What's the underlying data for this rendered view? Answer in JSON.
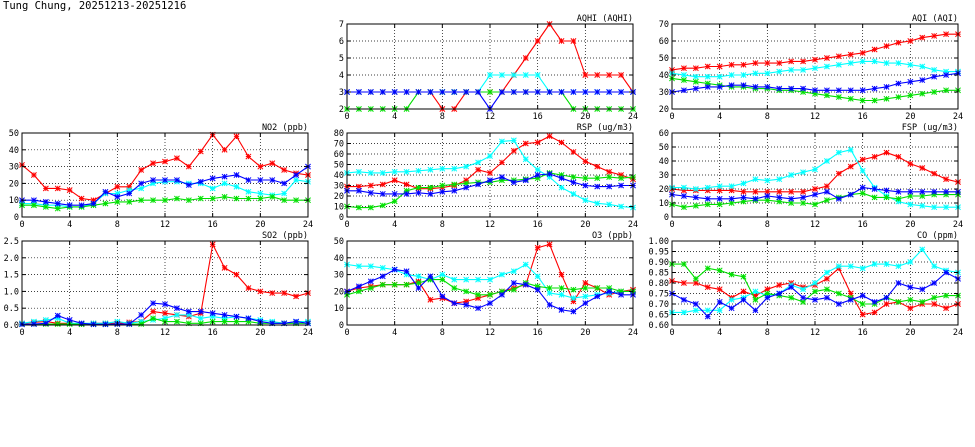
{
  "page": {
    "title": "Tung Chung, 20251213-20251216"
  },
  "chart_data": [
    {
      "id": "aqhi",
      "type": "line",
      "title": "AQHI (AQHI)",
      "xlabel": "",
      "ylabel": "",
      "xlim": [
        0,
        24
      ],
      "ylim": [
        2,
        7
      ],
      "xticks": [
        0,
        4,
        8,
        12,
        16,
        20,
        24
      ],
      "yticks": [
        2,
        3,
        4,
        5,
        6,
        7
      ],
      "grid": true,
      "series": [
        {
          "color": "#ff0000",
          "values": [
            3,
            3,
            3,
            3,
            3,
            3,
            3,
            3,
            2,
            2,
            3,
            3,
            3,
            3,
            4,
            5,
            6,
            7,
            6,
            6,
            4,
            4,
            4,
            4,
            3
          ]
        },
        {
          "color": "#00ffff",
          "values": [
            3,
            3,
            3,
            3,
            3,
            3,
            3,
            3,
            3,
            3,
            3,
            3,
            4,
            4,
            4,
            4,
            4,
            3,
            3,
            3,
            3,
            3,
            3,
            3,
            3
          ]
        },
        {
          "color": "#00e000",
          "values": [
            2,
            2,
            2,
            2,
            2,
            2,
            3,
            3,
            3,
            3,
            3,
            3,
            3,
            3,
            3,
            3,
            3,
            3,
            3,
            2,
            2,
            2,
            2,
            2,
            2
          ]
        },
        {
          "color": "#0000ff",
          "values": [
            3,
            3,
            3,
            3,
            3,
            3,
            3,
            3,
            3,
            3,
            3,
            3,
            2,
            3,
            3,
            3,
            3,
            3,
            3,
            3,
            3,
            3,
            3,
            3,
            3
          ]
        }
      ]
    },
    {
      "id": "aqi",
      "type": "line",
      "title": "AQI (AQI)",
      "xlabel": "",
      "ylabel": "",
      "xlim": [
        0,
        24
      ],
      "ylim": [
        20,
        70
      ],
      "xticks": [
        0,
        4,
        8,
        12,
        16,
        20,
        24
      ],
      "yticks": [
        20,
        30,
        40,
        50,
        60,
        70
      ],
      "grid": true,
      "series": [
        {
          "color": "#ff0000",
          "values": [
            43,
            44,
            44,
            45,
            45,
            46,
            46,
            47,
            47,
            47,
            48,
            48,
            49,
            50,
            51,
            52,
            53,
            55,
            57,
            59,
            60,
            62,
            63,
            64,
            64
          ]
        },
        {
          "color": "#00ffff",
          "values": [
            41,
            40,
            39,
            39,
            39,
            40,
            40,
            41,
            41,
            42,
            43,
            43,
            44,
            45,
            46,
            47,
            48,
            48,
            47,
            47,
            46,
            45,
            43,
            42,
            42
          ]
        },
        {
          "color": "#00e000",
          "values": [
            38,
            37,
            36,
            35,
            34,
            33,
            33,
            32,
            32,
            31,
            31,
            30,
            29,
            28,
            27,
            26,
            25,
            25,
            26,
            27,
            28,
            29,
            30,
            31,
            31
          ]
        },
        {
          "color": "#0000ff",
          "values": [
            30,
            31,
            32,
            33,
            33,
            34,
            34,
            33,
            33,
            32,
            32,
            32,
            31,
            31,
            31,
            31,
            31,
            32,
            33,
            35,
            36,
            37,
            39,
            40,
            41
          ]
        }
      ]
    },
    {
      "id": "no2",
      "type": "line",
      "title": "NO2 (ppb)",
      "xlabel": "",
      "ylabel": "",
      "xlim": [
        0,
        24
      ],
      "ylim": [
        0,
        50
      ],
      "xticks": [
        0,
        4,
        8,
        12,
        16,
        20,
        24
      ],
      "yticks": [
        0,
        10,
        20,
        30,
        40,
        50
      ],
      "grid": true,
      "series": [
        {
          "color": "#ff0000",
          "values": [
            31,
            25,
            17,
            17,
            16,
            11,
            10,
            14,
            18,
            18,
            28,
            32,
            33,
            35,
            30,
            39,
            49,
            40,
            48,
            36,
            30,
            32,
            28,
            26,
            25
          ]
        },
        {
          "color": "#00ffff",
          "values": [
            8,
            8,
            7,
            7,
            6,
            6,
            8,
            14,
            14,
            16,
            17,
            20,
            21,
            21,
            20,
            20,
            17,
            20,
            18,
            15,
            14,
            13,
            14,
            22,
            21
          ]
        },
        {
          "color": "#00e000",
          "values": [
            7,
            7,
            6,
            5,
            6,
            6,
            7,
            8,
            9,
            9,
            10,
            10,
            10,
            11,
            10,
            11,
            11,
            12,
            11,
            11,
            11,
            12,
            10,
            10,
            10
          ]
        },
        {
          "color": "#0000ff",
          "values": [
            10,
            10,
            9,
            8,
            7,
            7,
            8,
            15,
            12,
            14,
            20,
            22,
            22,
            22,
            19,
            21,
            23,
            24,
            25,
            22,
            22,
            22,
            20,
            25,
            30
          ]
        }
      ]
    },
    {
      "id": "rsp",
      "type": "line",
      "title": "RSP (ug/m3)",
      "xlabel": "",
      "ylabel": "",
      "xlim": [
        0,
        24
      ],
      "ylim": [
        0,
        80
      ],
      "xticks": [
        0,
        4,
        8,
        12,
        16,
        20,
        24
      ],
      "yticks": [
        0,
        10,
        20,
        30,
        40,
        50,
        60,
        70,
        80
      ],
      "grid": true,
      "series": [
        {
          "color": "#ff0000",
          "values": [
            29,
            29,
            30,
            31,
            35,
            31,
            27,
            27,
            28,
            30,
            35,
            45,
            42,
            52,
            63,
            70,
            71,
            77,
            71,
            62,
            53,
            48,
            43,
            40,
            36
          ]
        },
        {
          "color": "#00ffff",
          "values": [
            42,
            43,
            42,
            42,
            43,
            43,
            44,
            45,
            46,
            46,
            48,
            52,
            58,
            72,
            73,
            55,
            45,
            38,
            28,
            22,
            16,
            13,
            12,
            10,
            9
          ]
        },
        {
          "color": "#00e000",
          "values": [
            10,
            9,
            9,
            11,
            15,
            25,
            28,
            28,
            30,
            31,
            32,
            33,
            33,
            35,
            35,
            36,
            37,
            42,
            40,
            38,
            37,
            37,
            38,
            37,
            38
          ]
        },
        {
          "color": "#0000ff",
          "values": [
            25,
            25,
            23,
            22,
            22,
            22,
            23,
            22,
            24,
            25,
            28,
            31,
            35,
            38,
            33,
            35,
            40,
            41,
            37,
            33,
            30,
            29,
            29,
            30,
            30
          ]
        }
      ]
    },
    {
      "id": "fsp",
      "type": "line",
      "title": "FSP (ug/m3)",
      "xlabel": "",
      "ylabel": "",
      "xlim": [
        0,
        24
      ],
      "ylim": [
        0,
        60
      ],
      "xticks": [
        0,
        4,
        8,
        12,
        16,
        20,
        24
      ],
      "yticks": [
        0,
        10,
        20,
        30,
        40,
        50,
        60
      ],
      "grid": true,
      "series": [
        {
          "color": "#ff0000",
          "values": [
            20,
            19,
            19,
            19,
            19,
            19,
            18,
            18,
            18,
            18,
            18,
            18,
            20,
            22,
            31,
            36,
            41,
            43,
            46,
            43,
            38,
            35,
            31,
            27,
            25
          ]
        },
        {
          "color": "#00ffff",
          "values": [
            21,
            21,
            20,
            21,
            22,
            22,
            24,
            27,
            26,
            27,
            30,
            32,
            34,
            40,
            46,
            48,
            33,
            21,
            15,
            11,
            9,
            8,
            7,
            7,
            7
          ]
        },
        {
          "color": "#00e000",
          "values": [
            9,
            7,
            8,
            9,
            9,
            10,
            11,
            12,
            12,
            11,
            10,
            10,
            9,
            12,
            14,
            16,
            17,
            14,
            14,
            13,
            15,
            15,
            16,
            16,
            16
          ]
        },
        {
          "color": "#0000ff",
          "values": [
            16,
            15,
            14,
            13,
            13,
            13,
            14,
            13,
            15,
            14,
            13,
            14,
            16,
            18,
            13,
            16,
            21,
            20,
            19,
            18,
            18,
            18,
            18,
            18,
            18
          ]
        }
      ]
    },
    {
      "id": "so2",
      "type": "line",
      "title": "SO2 (ppb)",
      "xlabel": "",
      "ylabel": "",
      "xlim": [
        0,
        24
      ],
      "ylim": [
        0,
        2.5
      ],
      "xticks": [
        0,
        4,
        8,
        12,
        16,
        20,
        24
      ],
      "yticks": [
        0,
        0.5,
        1.0,
        1.5,
        2.0,
        2.5
      ],
      "grid": true,
      "series": [
        {
          "color": "#ff0000",
          "values": [
            0.05,
            0.08,
            0.1,
            0.05,
            0.05,
            0.03,
            0.05,
            0.05,
            0.05,
            0.08,
            0.1,
            0.4,
            0.35,
            0.3,
            0.25,
            0.35,
            2.4,
            1.7,
            1.5,
            1.1,
            1.0,
            0.95,
            0.95,
            0.85,
            0.95
          ]
        },
        {
          "color": "#00ffff",
          "values": [
            0.05,
            0.1,
            0.15,
            0.2,
            0.05,
            0.05,
            0.05,
            0.05,
            0.1,
            0.05,
            0.1,
            0.15,
            0.2,
            0.3,
            0.3,
            0.2,
            0.25,
            0.2,
            0.25,
            0.2,
            0.15,
            0.1,
            0.05,
            0.1,
            0.1
          ]
        },
        {
          "color": "#00e000",
          "values": [
            0.02,
            0.03,
            0.03,
            0.03,
            0.03,
            0.02,
            0.02,
            0.02,
            0.03,
            0.03,
            0.03,
            0.2,
            0.1,
            0.1,
            0.05,
            0.05,
            0.1,
            0.1,
            0.1,
            0.1,
            0.05,
            0.05,
            0.05,
            0.05,
            0.05
          ]
        },
        {
          "color": "#0000ff",
          "values": [
            0.02,
            0.03,
            0.05,
            0.28,
            0.15,
            0.05,
            0.02,
            0.02,
            0.03,
            0.03,
            0.3,
            0.65,
            0.62,
            0.5,
            0.4,
            0.4,
            0.35,
            0.3,
            0.25,
            0.2,
            0.1,
            0.05,
            0.05,
            0.1,
            0.05
          ]
        }
      ]
    },
    {
      "id": "o3",
      "type": "line",
      "title": "O3 (ppb)",
      "xlabel": "",
      "ylabel": "",
      "xlim": [
        0,
        24
      ],
      "ylim": [
        0,
        50
      ],
      "xticks": [
        0,
        4,
        8,
        12,
        16,
        20,
        24
      ],
      "yticks": [
        0,
        10,
        20,
        30,
        40,
        50
      ],
      "grid": true,
      "series": [
        {
          "color": "#ff0000",
          "values": [
            20,
            22,
            23,
            24,
            24,
            24,
            26,
            15,
            16,
            13,
            14,
            16,
            18,
            20,
            22,
            24,
            46,
            48,
            30,
            14,
            25,
            22,
            18,
            20,
            21
          ]
        },
        {
          "color": "#00ffff",
          "values": [
            36,
            35,
            35,
            34,
            33,
            30,
            29,
            27,
            30,
            27,
            27,
            27,
            27,
            30,
            32,
            36,
            29,
            19,
            18,
            16,
            17,
            18,
            19,
            20,
            20
          ]
        },
        {
          "color": "#00e000",
          "values": [
            18,
            20,
            22,
            24,
            24,
            24,
            25,
            27,
            27,
            22,
            20,
            18,
            18,
            20,
            21,
            25,
            23,
            22,
            22,
            21,
            22,
            22,
            22,
            20,
            20
          ]
        },
        {
          "color": "#0000ff",
          "values": [
            20,
            23,
            26,
            29,
            33,
            32,
            22,
            29,
            17,
            13,
            12,
            10,
            13,
            18,
            25,
            24,
            21,
            12,
            9,
            8,
            13,
            17,
            20,
            18,
            18
          ]
        }
      ]
    },
    {
      "id": "co",
      "type": "line",
      "title": "CO (ppm)",
      "xlabel": "",
      "ylabel": "",
      "xlim": [
        0,
        24
      ],
      "ylim": [
        0.6,
        1.0
      ],
      "xticks": [
        0,
        4,
        8,
        12,
        16,
        20,
        24
      ],
      "yticks": [
        0.6,
        0.65,
        0.7,
        0.75,
        0.8,
        0.85,
        0.9,
        0.95,
        1.0
      ],
      "grid": true,
      "series": [
        {
          "color": "#ff0000",
          "values": [
            0.81,
            0.8,
            0.8,
            0.78,
            0.77,
            0.73,
            0.76,
            0.74,
            0.77,
            0.79,
            0.8,
            0.78,
            0.79,
            0.82,
            0.87,
            0.75,
            0.65,
            0.66,
            0.7,
            0.71,
            0.68,
            0.7,
            0.7,
            0.68,
            0.7
          ]
        },
        {
          "color": "#00ffff",
          "values": [
            0.66,
            0.66,
            0.67,
            0.67,
            0.67,
            0.72,
            0.73,
            0.76,
            0.74,
            0.75,
            0.79,
            0.77,
            0.8,
            0.85,
            0.88,
            0.88,
            0.87,
            0.89,
            0.89,
            0.88,
            0.9,
            0.96,
            0.88,
            0.86,
            0.85
          ]
        },
        {
          "color": "#00e000",
          "values": [
            0.89,
            0.89,
            0.82,
            0.87,
            0.86,
            0.84,
            0.83,
            0.72,
            0.75,
            0.74,
            0.73,
            0.71,
            0.76,
            0.77,
            0.75,
            0.73,
            0.7,
            0.7,
            0.73,
            0.71,
            0.72,
            0.71,
            0.73,
            0.74,
            0.74
          ]
        },
        {
          "color": "#0000ff",
          "values": [
            0.75,
            0.72,
            0.7,
            0.64,
            0.71,
            0.68,
            0.72,
            0.67,
            0.73,
            0.75,
            0.78,
            0.73,
            0.72,
            0.73,
            0.7,
            0.72,
            0.74,
            0.71,
            0.73,
            0.8,
            0.78,
            0.77,
            0.8,
            0.85,
            0.82
          ]
        }
      ]
    }
  ]
}
